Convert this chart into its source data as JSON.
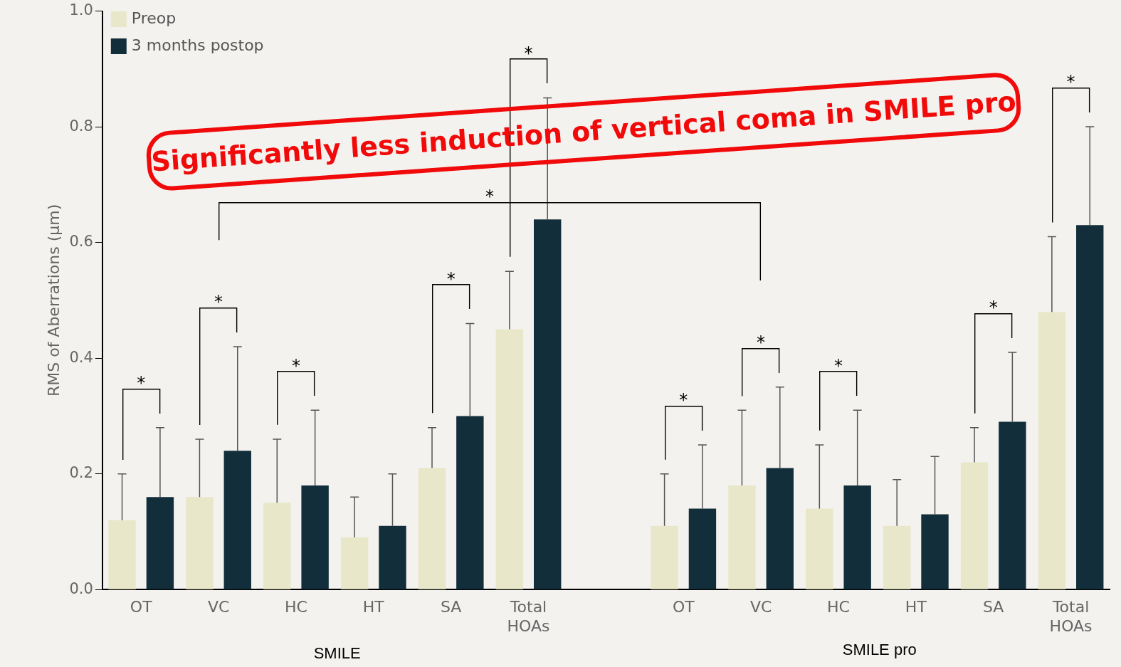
{
  "chart_data": {
    "type": "bar",
    "ylabel": "RMS of Aberrations (μm)",
    "categories": [
      "OT",
      "VC",
      "HC",
      "HT",
      "SA",
      "Total HOAs",
      null,
      "OT",
      "VC",
      "HC",
      "HT",
      "SA",
      "Total HOAs"
    ],
    "series": [
      {
        "name": "Preop",
        "color": "#e8e7c9",
        "values": [
          0.12,
          0.16,
          0.15,
          0.09,
          0.21,
          0.45,
          null,
          0.11,
          0.18,
          0.14,
          0.11,
          0.22,
          0.48
        ],
        "errors": [
          0.08,
          0.1,
          0.11,
          0.07,
          0.07,
          0.1,
          null,
          0.09,
          0.13,
          0.11,
          0.08,
          0.06,
          0.13
        ]
      },
      {
        "name": "3 months postop",
        "color": "#122e3a",
        "values": [
          0.16,
          0.24,
          0.18,
          0.11,
          0.3,
          0.64,
          null,
          0.14,
          0.21,
          0.18,
          0.13,
          0.29,
          0.63
        ],
        "errors": [
          0.12,
          0.18,
          0.13,
          0.09,
          0.16,
          0.21,
          null,
          0.11,
          0.14,
          0.13,
          0.1,
          0.12,
          0.17
        ]
      }
    ],
    "ylim": [
      0,
      1
    ],
    "yticks": [
      {
        "value": 0,
        "label": "0.0"
      },
      {
        "value": 0.2,
        "label": "0.2"
      },
      {
        "value": 0.4,
        "label": "0.4"
      },
      {
        "value": 0.6,
        "label": "0.6"
      },
      {
        "value": 0.8,
        "label": "0.8"
      },
      {
        "value": 1,
        "label": "1.0"
      }
    ],
    "grid": false,
    "legend": "top left",
    "annotations": [
      "*",
      "*",
      "*",
      "*",
      "*",
      "*",
      "*",
      "*",
      "*",
      "*",
      "*",
      "SMILE",
      "SMILE pro",
      "Significantly less induction of vertical coma in SMILE pro"
    ]
  }
}
